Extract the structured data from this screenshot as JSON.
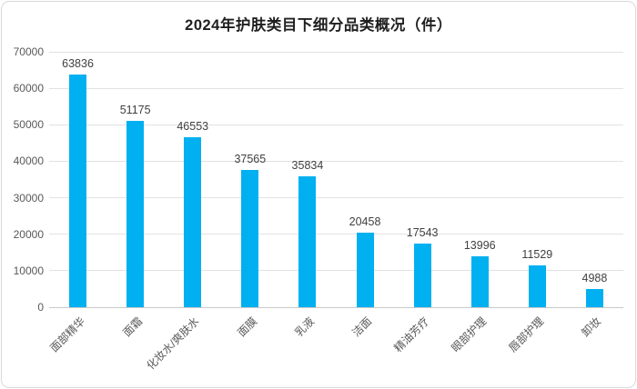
{
  "chart_data": {
    "type": "bar",
    "title": "2024年护肤类目下细分品类概况（件）",
    "categories": [
      "面部精华",
      "面霜",
      "化妆水/爽肤水",
      "面膜",
      "乳液",
      "洁面",
      "精油芳疗",
      "眼部护理",
      "唇部护理",
      "卸妆"
    ],
    "values": [
      63836,
      51175,
      46553,
      37565,
      35834,
      20458,
      17543,
      13996,
      11529,
      4988
    ],
    "xlabel": "",
    "ylabel": "",
    "ylim": [
      0,
      70000
    ],
    "ytick_step": 10000,
    "ytick_labels": [
      "0",
      "10000",
      "20000",
      "30000",
      "40000",
      "50000",
      "60000",
      "70000"
    ],
    "grid": true,
    "legend_position": "none",
    "value_labels_shown": true
  },
  "colors": {
    "bar": "#00B0F0",
    "gridline": "#E2E2E2",
    "baseline": "#C9C9C9",
    "axis_text": "#595959",
    "value_label_text": "#404040",
    "title_text": "#1F1F1F",
    "card_border": "#D9D9D9",
    "background": "#FFFFFF"
  }
}
